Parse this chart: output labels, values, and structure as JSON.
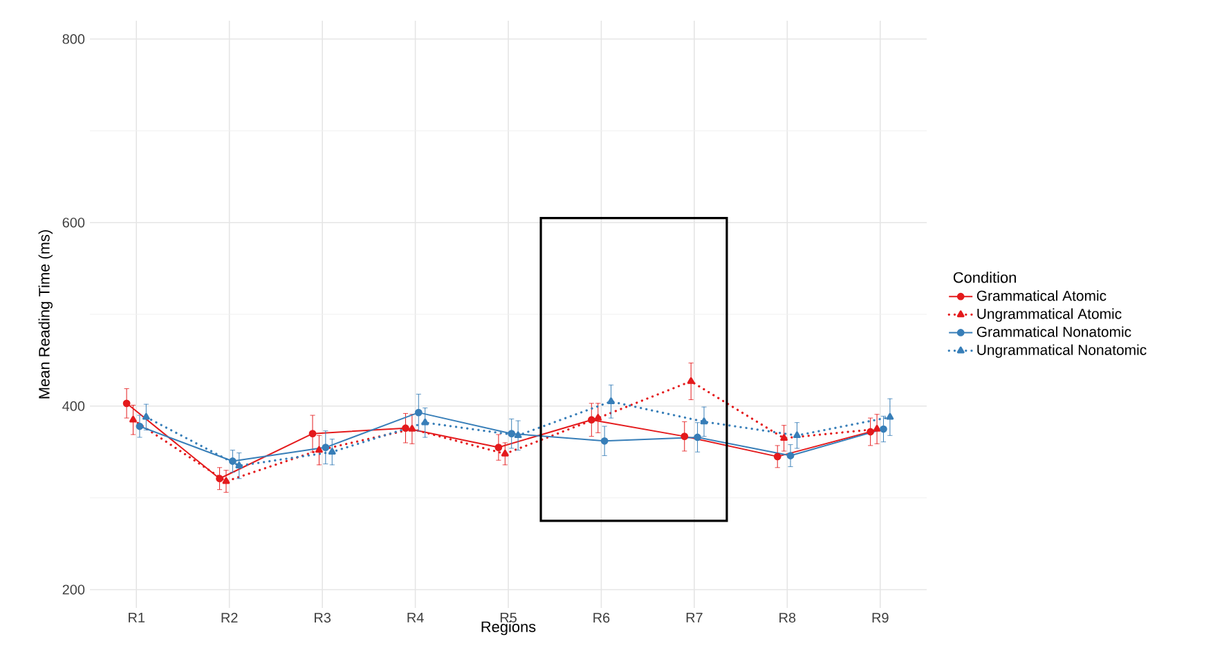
{
  "chart_data": {
    "type": "line",
    "xlabel": "Regions",
    "ylabel": "Mean Reading Time (ms)",
    "legend_title": "Condition",
    "categories": [
      "R1",
      "R2",
      "R3",
      "R4",
      "R5",
      "R6",
      "R7",
      "R8",
      "R9"
    ],
    "ylim": [
      180,
      820
    ],
    "yticks": [
      200,
      400,
      600,
      800
    ],
    "grid": true,
    "legend": "right",
    "series": [
      {
        "name": "Grammatical Atomic",
        "color": "#e41a1c",
        "marker": "circle",
        "line_style": "solid",
        "values": [
          403,
          321,
          370,
          376,
          355,
          385,
          367,
          345,
          372
        ],
        "errors": [
          16,
          12,
          20,
          16,
          14,
          18,
          16,
          12,
          15
        ]
      },
      {
        "name": "Ungrammatical Atomic",
        "color": "#e41a1c",
        "marker": "triangle",
        "line_style": "dotted",
        "values": [
          385,
          318,
          352,
          375,
          348,
          387,
          427,
          365,
          375
        ],
        "errors": [
          16,
          12,
          16,
          16,
          12,
          16,
          20,
          14,
          16
        ]
      },
      {
        "name": "Grammatical Nonatomic",
        "color": "#377eb8",
        "marker": "circle",
        "line_style": "solid",
        "values": [
          378,
          340,
          355,
          393,
          370,
          362,
          366,
          346,
          375
        ],
        "errors": [
          12,
          12,
          18,
          20,
          16,
          16,
          16,
          12,
          14
        ]
      },
      {
        "name": "Ungrammatical Nonatomic",
        "color": "#377eb8",
        "marker": "triangle",
        "line_style": "dotted",
        "values": [
          388,
          335,
          350,
          382,
          368,
          405,
          383,
          368,
          388
        ],
        "errors": [
          14,
          14,
          14,
          16,
          16,
          18,
          16,
          14,
          20
        ]
      }
    ]
  }
}
